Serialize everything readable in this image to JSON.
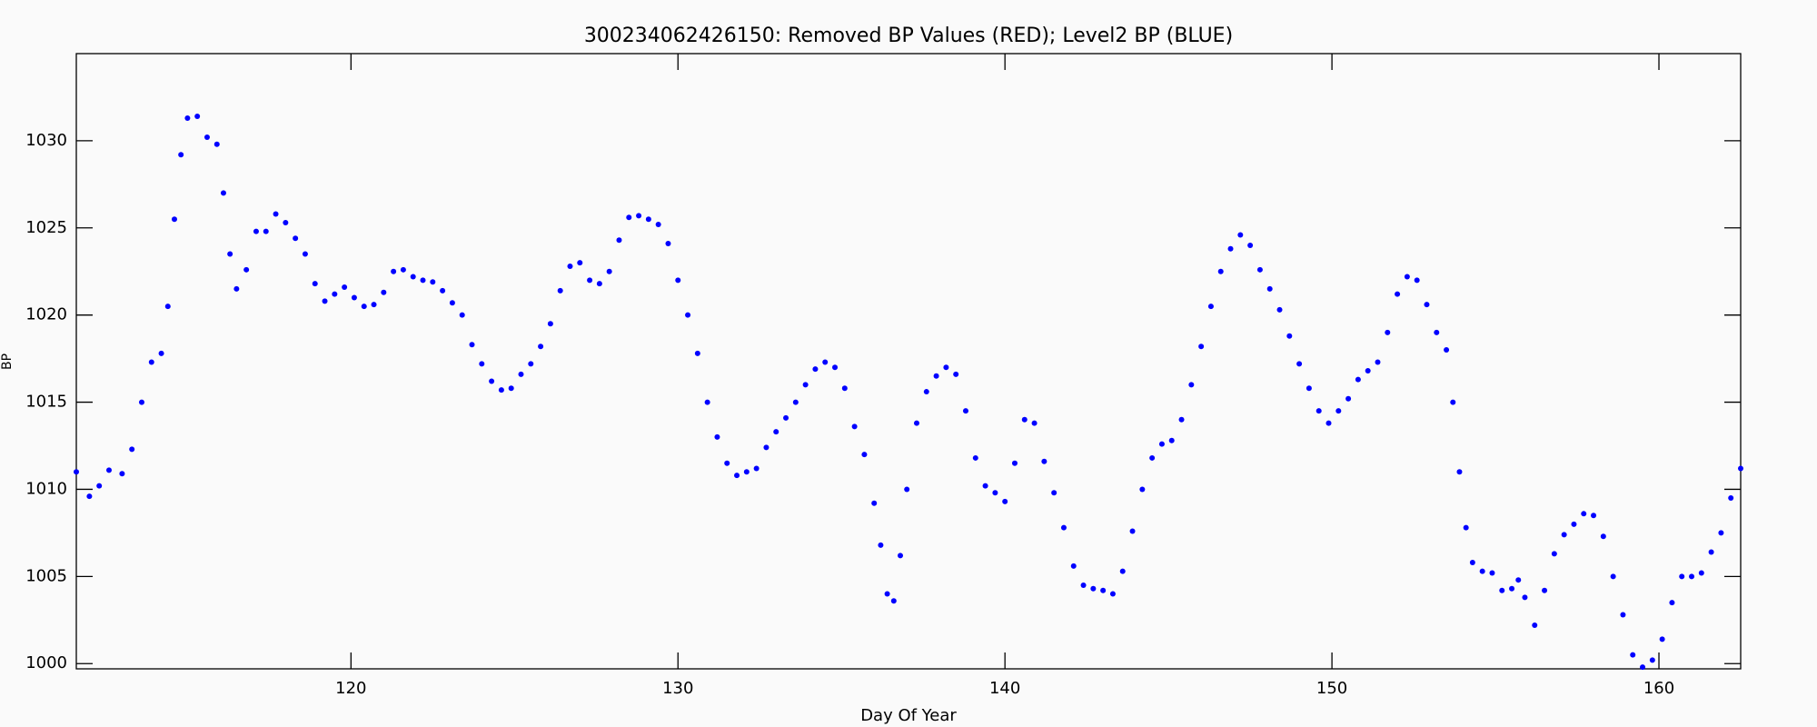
{
  "chart_data": {
    "type": "scatter",
    "title": "300234062426150: Removed BP Values (RED); Level2 BP (BLUE)",
    "x_label": "Day Of Year",
    "y_label": "BP",
    "color": "#0000ff",
    "xlim": [
      111.6,
      162.5
    ],
    "ylim": [
      999.7,
      1035
    ],
    "xticks": [
      120,
      130,
      140,
      150,
      160
    ],
    "yticks": [
      1000,
      1005,
      1010,
      1015,
      1020,
      1025,
      1030
    ],
    "x": [
      111.6,
      112.0,
      112.3,
      112.6,
      113.0,
      113.3,
      113.6,
      113.9,
      114.2,
      114.4,
      114.6,
      114.8,
      115.0,
      115.3,
      115.6,
      115.9,
      116.1,
      116.3,
      116.5,
      116.8,
      117.1,
      117.4,
      117.7,
      118.0,
      118.3,
      118.6,
      118.9,
      119.2,
      119.5,
      119.8,
      120.1,
      120.4,
      120.7,
      121.0,
      121.3,
      121.6,
      121.9,
      122.2,
      122.5,
      122.8,
      123.1,
      123.4,
      123.7,
      124.0,
      124.3,
      124.6,
      124.9,
      125.2,
      125.5,
      125.8,
      126.1,
      126.4,
      126.7,
      127.0,
      127.3,
      127.6,
      127.9,
      128.2,
      128.5,
      128.8,
      129.1,
      129.4,
      129.7,
      130.0,
      130.3,
      130.6,
      130.9,
      131.2,
      131.5,
      131.8,
      132.1,
      132.4,
      132.7,
      133.0,
      133.3,
      133.6,
      133.9,
      134.2,
      134.5,
      134.8,
      135.1,
      135.4,
      135.7,
      136.0,
      136.2,
      136.4,
      136.6,
      136.8,
      137.0,
      137.3,
      137.6,
      137.9,
      138.2,
      138.5,
      138.8,
      139.1,
      139.4,
      139.7,
      140.0,
      140.3,
      140.6,
      140.9,
      141.2,
      141.5,
      141.8,
      142.1,
      142.4,
      142.7,
      143.0,
      143.3,
      143.6,
      143.9,
      144.2,
      144.5,
      144.8,
      145.1,
      145.4,
      145.7,
      146.0,
      146.3,
      146.6,
      146.9,
      147.2,
      147.5,
      147.8,
      148.1,
      148.4,
      148.7,
      149.0,
      149.3,
      149.6,
      149.9,
      150.2,
      150.5,
      150.8,
      151.1,
      151.4,
      151.7,
      152.0,
      152.3,
      152.6,
      152.9,
      153.2,
      153.5,
      153.7,
      153.9,
      154.1,
      154.3,
      154.6,
      154.9,
      155.2,
      155.5,
      155.7,
      155.9,
      156.2,
      156.5,
      156.8,
      157.1,
      157.4,
      157.7,
      158.0,
      158.3,
      158.6,
      158.9,
      159.2,
      159.5,
      159.8,
      160.1,
      160.4,
      160.7,
      161.0,
      161.3,
      161.6,
      161.9,
      162.2,
      162.5
    ],
    "values": [
      1011,
      1009.6,
      1010.2,
      1011.1,
      1010.9,
      1012.3,
      1015,
      1017.3,
      1017.8,
      1020.5,
      1025.5,
      1029.2,
      1031.3,
      1031.4,
      1030.2,
      1029.8,
      1027,
      1023.5,
      1021.5,
      1022.6,
      1024.8,
      1024.8,
      1025.8,
      1025.3,
      1024.4,
      1023.5,
      1021.8,
      1020.8,
      1021.2,
      1021.6,
      1021.0,
      1020.5,
      1020.6,
      1021.3,
      1022.5,
      1022.6,
      1022.2,
      1022.0,
      1021.9,
      1021.4,
      1020.7,
      1020.0,
      1018.3,
      1017.2,
      1016.2,
      1015.7,
      1015.8,
      1016.6,
      1017.2,
      1018.2,
      1019.5,
      1021.4,
      1022.8,
      1023.0,
      1022.0,
      1021.8,
      1022.5,
      1024.3,
      1025.6,
      1025.7,
      1025.5,
      1025.2,
      1024.1,
      1022.0,
      1020.0,
      1017.8,
      1015.0,
      1013.0,
      1011.5,
      1010.8,
      1011.0,
      1011.2,
      1012.4,
      1013.3,
      1014.1,
      1015.0,
      1016.0,
      1016.9,
      1017.3,
      1017.0,
      1015.8,
      1013.6,
      1012.0,
      1009.2,
      1006.8,
      1004.0,
      1003.6,
      1006.2,
      1010.0,
      1013.8,
      1015.6,
      1016.5,
      1017.0,
      1016.6,
      1014.5,
      1011.8,
      1010.2,
      1009.8,
      1009.3,
      1011.5,
      1014.0,
      1013.8,
      1011.6,
      1009.8,
      1007.8,
      1005.6,
      1004.5,
      1004.3,
      1004.2,
      1004.0,
      1005.3,
      1007.6,
      1010.0,
      1011.8,
      1012.6,
      1012.8,
      1014.0,
      1016.0,
      1018.2,
      1020.5,
      1022.5,
      1023.8,
      1024.6,
      1024.0,
      1022.6,
      1021.5,
      1020.3,
      1018.8,
      1017.2,
      1015.8,
      1014.5,
      1013.8,
      1014.5,
      1015.2,
      1016.3,
      1016.8,
      1017.3,
      1019.0,
      1021.2,
      1022.2,
      1022.0,
      1020.6,
      1019.0,
      1018.0,
      1015.0,
      1011.0,
      1007.8,
      1005.8,
      1005.3,
      1005.2,
      1004.2,
      1004.3,
      1004.8,
      1003.8,
      1002.2,
      1004.2,
      1006.3,
      1007.4,
      1008.0,
      1008.6,
      1008.5,
      1007.3,
      1005.0,
      1002.8,
      1000.5,
      999.8,
      1000.2,
      1001.4,
      1003.5,
      1005.0,
      1005.0,
      1005.2,
      1006.4,
      1007.5,
      1009.5,
      1011.2
    ]
  }
}
